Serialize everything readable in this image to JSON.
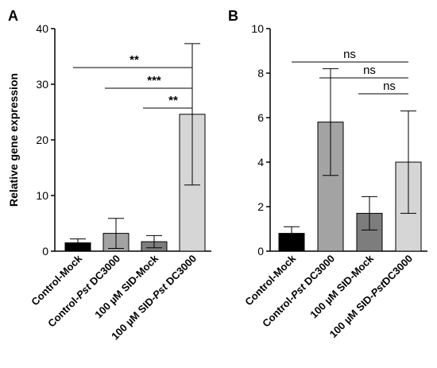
{
  "chart_data": [
    {
      "panel": "A",
      "type": "bar",
      "ylabel": "Relative gene expression",
      "xlabel": "",
      "ylim": [
        0,
        40
      ],
      "yticks": [
        0,
        10,
        20,
        30,
        40
      ],
      "categories": [
        [
          {
            "t": "Control-Mock",
            "i": false
          }
        ],
        [
          {
            "t": "Control-",
            "i": false
          },
          {
            "t": "Pst",
            "i": true
          },
          {
            "t": " DC3000",
            "i": false
          }
        ],
        [
          {
            "t": "100 µM SID-Mock",
            "i": false
          }
        ],
        [
          {
            "t": "100 µM SID-",
            "i": false
          },
          {
            "t": "Pst",
            "i": true
          },
          {
            "t": " DC3000",
            "i": false
          }
        ]
      ],
      "values": [
        1.5,
        3.2,
        1.7,
        24.6
      ],
      "error": [
        0.7,
        2.7,
        1.1,
        12.7
      ],
      "colors": [
        "#000000",
        "#a3a3a3",
        "#7d7d7d",
        "#d6d6d6"
      ],
      "significance": [
        {
          "from": 0,
          "to": 3,
          "label": "**"
        },
        {
          "from": 1,
          "to": 3,
          "label": "***"
        },
        {
          "from": 2,
          "to": 3,
          "label": "**"
        }
      ]
    },
    {
      "panel": "B",
      "type": "bar",
      "ylabel": "",
      "xlabel": "",
      "ylim": [
        0,
        10
      ],
      "yticks": [
        0,
        2,
        4,
        6,
        8,
        10
      ],
      "categories": [
        [
          {
            "t": "Control-Mock",
            "i": false
          }
        ],
        [
          {
            "t": "Control-",
            "i": false
          },
          {
            "t": "Pst",
            "i": true
          },
          {
            "t": " DC3000",
            "i": false
          }
        ],
        [
          {
            "t": "100 µM SID-Mock",
            "i": false
          }
        ],
        [
          {
            "t": "100 µM SID-",
            "i": false
          },
          {
            "t": "Pst",
            "i": true
          },
          {
            "t": "DC3000",
            "i": false
          }
        ]
      ],
      "values": [
        0.8,
        5.8,
        1.7,
        4.0
      ],
      "error": [
        0.3,
        2.4,
        0.75,
        2.3
      ],
      "colors": [
        "#000000",
        "#a3a3a3",
        "#7d7d7d",
        "#d6d6d6"
      ],
      "significance": [
        {
          "from": 0,
          "to": 3,
          "label": "ns"
        },
        {
          "from": 1,
          "to": 3,
          "label": "ns"
        },
        {
          "from": 2,
          "to": 3,
          "label": "ns"
        }
      ]
    }
  ]
}
